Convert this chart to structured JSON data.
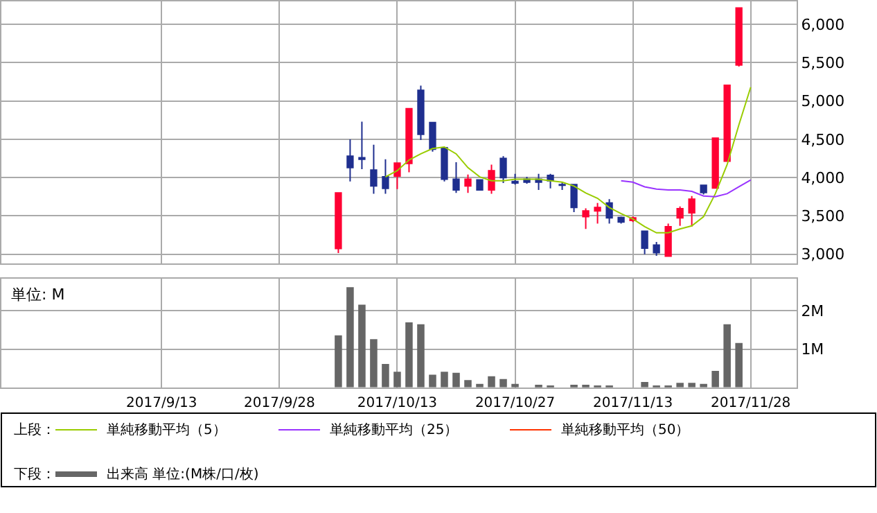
{
  "chart_data": [
    {
      "type": "candlestick",
      "legend_title": "上段：",
      "legend": "bottom",
      "grid": true,
      "tick_labels": "y",
      "categories": [
        null,
        null,
        null,
        null,
        null,
        null,
        null,
        null,
        null,
        null,
        null,
        null,
        null,
        "2017/9/13",
        null,
        null,
        null,
        null,
        null,
        null,
        null,
        null,
        null,
        "2017/9/28",
        null,
        null,
        null,
        null,
        null,
        null,
        null,
        null,
        null,
        "2017/10/13",
        null,
        null,
        null,
        null,
        null,
        null,
        null,
        null,
        null,
        "2017/10/27",
        null,
        null,
        null,
        null,
        null,
        null,
        null,
        null,
        null,
        "2017/11/13",
        null,
        null,
        null,
        null,
        null,
        null,
        null,
        null,
        null,
        "2017/11/28",
        null,
        null,
        null
      ],
      "ohlc": [
        null,
        null,
        null,
        null,
        null,
        null,
        null,
        null,
        null,
        null,
        null,
        null,
        null,
        null,
        null,
        null,
        null,
        null,
        null,
        null,
        null,
        null,
        null,
        null,
        null,
        null,
        null,
        null,
        [
          3075,
          3800,
          3015,
          3800
        ],
        [
          4280,
          4500,
          3950,
          4130
        ],
        [
          4260,
          4730,
          4110,
          4240
        ],
        [
          4100,
          4430,
          3790,
          3890
        ],
        [
          4010,
          4240,
          3790,
          3860
        ],
        [
          4020,
          4190,
          3850,
          4190
        ],
        [
          4185,
          4900,
          4070,
          4900
        ],
        [
          5140,
          5200,
          4490,
          4565
        ],
        [
          4720,
          4720,
          4340,
          4370
        ],
        [
          4390,
          4390,
          3950,
          3980
        ],
        [
          3980,
          4200,
          3800,
          3840
        ],
        [
          3890,
          4040,
          3800,
          3980
        ],
        [
          3970,
          3970,
          3840,
          3840
        ],
        [
          3840,
          4170,
          3790,
          4090
        ],
        [
          4250,
          4280,
          3930,
          4000
        ],
        [
          3950,
          4050,
          3910,
          3930
        ],
        [
          3980,
          4010,
          3920,
          3940
        ],
        [
          3980,
          4050,
          3840,
          3940
        ],
        [
          4030,
          4050,
          3860,
          3960
        ],
        [
          3910,
          3940,
          3840,
          3900
        ],
        [
          3910,
          3910,
          3550,
          3610
        ],
        [
          3490,
          3600,
          3330,
          3565
        ],
        [
          3565,
          3670,
          3400,
          3610
        ],
        [
          3670,
          3720,
          3400,
          3475
        ],
        [
          3480,
          3490,
          3400,
          3420
        ],
        [
          3440,
          3490,
          3420,
          3475
        ],
        [
          3300,
          3310,
          3000,
          3080
        ],
        [
          3120,
          3160,
          2980,
          3020
        ],
        [
          2975,
          3400,
          2975,
          3360
        ],
        [
          3475,
          3625,
          3370,
          3595
        ],
        [
          3540,
          3760,
          3360,
          3720
        ],
        [
          3900,
          3900,
          3780,
          3805
        ],
        [
          3865,
          4515,
          3865,
          4515
        ],
        [
          4215,
          5205,
          4215,
          5205
        ],
        [
          5470,
          6215,
          5450,
          6215
        ],
        null,
        null,
        null,
        null
      ],
      "colors": [
        null,
        null,
        null,
        null,
        null,
        null,
        null,
        null,
        null,
        null,
        null,
        null,
        null,
        null,
        null,
        null,
        null,
        null,
        null,
        null,
        null,
        null,
        null,
        null,
        null,
        null,
        null,
        null,
        "#ff0033",
        "#1f2f8f",
        "#1f2f8f",
        "#1f2f8f",
        "#1f2f8f",
        "#ff0033",
        "#ff0033",
        "#1f2f8f",
        "#1f2f8f",
        "#1f2f8f",
        "#1f2f8f",
        "#ff0033",
        "#1f2f8f",
        "#ff0033",
        "#1f2f8f",
        "#1f2f8f",
        "#1f2f8f",
        "#1f2f8f",
        "#1f2f8f",
        "#1f2f8f",
        "#1f2f8f",
        "#ff0033",
        "#ff0033",
        "#1f2f8f",
        "#1f2f8f",
        "#ff0033",
        "#1f2f8f",
        "#1f2f8f",
        "#ff0033",
        "#ff0033",
        "#ff0033",
        "#1f2f8f",
        "#ff0033",
        "#ff0033",
        "#ff0033",
        null,
        null,
        null,
        null
      ],
      "series": [
        {
          "name": "単純移動平均（5）",
          "type": "line",
          "color": "#99cc00",
          "values": [
            null,
            null,
            null,
            null,
            null,
            null,
            null,
            null,
            null,
            null,
            null,
            null,
            null,
            null,
            null,
            null,
            null,
            null,
            null,
            null,
            null,
            null,
            null,
            null,
            null,
            null,
            null,
            null,
            null,
            null,
            null,
            null,
            4010,
            4090,
            4230,
            4310,
            4380,
            4400,
            4310,
            4130,
            4010,
            3960,
            3960,
            3980,
            3980,
            3980,
            3960,
            3940,
            3890,
            3800,
            3730,
            3610,
            3530,
            3460,
            3360,
            3280,
            3280,
            3330,
            3370,
            3490,
            3790,
            4170,
            4690,
            5180,
            null,
            null,
            null
          ]
        },
        {
          "name": "単純移動平均（25）",
          "type": "line",
          "color": "#9933ff",
          "values": [
            null,
            null,
            null,
            null,
            null,
            null,
            null,
            null,
            null,
            null,
            null,
            null,
            null,
            null,
            null,
            null,
            null,
            null,
            null,
            null,
            null,
            null,
            null,
            null,
            null,
            null,
            null,
            null,
            null,
            null,
            null,
            null,
            null,
            null,
            null,
            null,
            null,
            null,
            null,
            null,
            null,
            null,
            null,
            null,
            null,
            null,
            null,
            null,
            null,
            null,
            null,
            null,
            3960,
            3940,
            3880,
            3850,
            3840,
            3840,
            3820,
            3760,
            3750,
            3790,
            3880,
            3970,
            null,
            null,
            null
          ]
        },
        {
          "name": "単純移動平均（50）",
          "type": "line",
          "color": "#ff3300",
          "values": [
            null,
            null,
            null,
            null,
            null,
            null,
            null,
            null,
            null,
            null,
            null,
            null,
            null,
            null,
            null,
            null,
            null,
            null,
            null,
            null,
            null,
            null,
            null,
            null,
            null,
            null,
            null,
            null,
            null,
            null,
            null,
            null,
            null,
            null,
            null,
            null,
            null,
            null,
            null,
            null,
            null,
            null,
            null,
            null,
            null,
            null,
            null,
            null,
            null,
            null,
            null,
            null,
            null,
            null,
            null,
            null,
            null,
            null,
            null,
            null,
            null,
            null,
            null,
            null,
            null,
            null,
            null
          ]
        }
      ],
      "ylim": [
        2880,
        6300
      ],
      "yticks": [
        {
          "value": 3000,
          "label": "3,000"
        },
        {
          "value": 3500,
          "label": "3,500"
        },
        {
          "value": 4000,
          "label": "4,000"
        },
        {
          "value": 4500,
          "label": "4,500"
        },
        {
          "value": 5000,
          "label": "5,000"
        },
        {
          "value": 5500,
          "label": "5,500"
        },
        {
          "value": 6000,
          "label": "6,000"
        }
      ]
    },
    {
      "type": "bar",
      "legend_title": "下段：",
      "legend": "bottom",
      "grid": true,
      "annotations": [
        "単位: M"
      ],
      "categories": [
        null,
        null,
        null,
        null,
        null,
        null,
        null,
        null,
        null,
        null,
        null,
        null,
        null,
        "2017/9/13",
        null,
        null,
        null,
        null,
        null,
        null,
        null,
        null,
        null,
        "2017/9/28",
        null,
        null,
        null,
        null,
        null,
        null,
        null,
        null,
        null,
        "2017/10/13",
        null,
        null,
        null,
        null,
        null,
        null,
        null,
        null,
        null,
        "2017/10/27",
        null,
        null,
        null,
        null,
        null,
        null,
        null,
        null,
        null,
        "2017/11/13",
        null,
        null,
        null,
        null,
        null,
        null,
        null,
        null,
        null,
        "2017/11/28",
        null,
        null,
        null
      ],
      "series": [
        {
          "name": "出来高 単位:(M株/口/枚)",
          "color": "#666666",
          "values": [
            null,
            null,
            null,
            null,
            null,
            null,
            null,
            null,
            null,
            null,
            null,
            null,
            null,
            null,
            null,
            null,
            null,
            null,
            null,
            null,
            null,
            null,
            null,
            null,
            null,
            null,
            null,
            null,
            1.36,
            2.62,
            2.16,
            1.26,
            0.61,
            0.41,
            1.7,
            1.65,
            0.33,
            0.41,
            0.38,
            0.19,
            0.09,
            0.29,
            0.22,
            0.09,
            null,
            0.07,
            0.04,
            null,
            0.07,
            0.07,
            0.04,
            0.04,
            null,
            0,
            0.14,
            0.04,
            0.04,
            0.12,
            0.12,
            0.09,
            0.43,
            1.65,
            1.16,
            null,
            null,
            null,
            null
          ]
        }
      ],
      "ylim": [
        0,
        2.84
      ],
      "yticks": [
        {
          "value": 1,
          "label": "1M"
        },
        {
          "value": 2,
          "label": "2M"
        }
      ]
    }
  ]
}
